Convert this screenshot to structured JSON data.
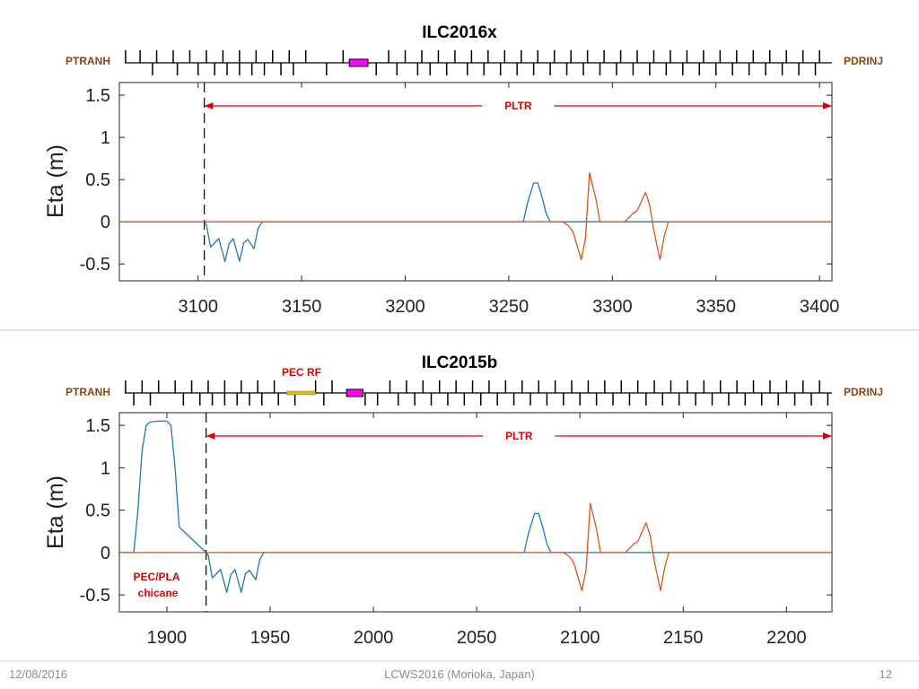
{
  "chart_data": [
    {
      "type": "line",
      "title": "ILC2016x",
      "ylabel": "Eta (m)",
      "xlim": [
        3062,
        3406
      ],
      "ylim": [
        -0.7,
        1.65
      ],
      "xticks": [
        3100,
        3150,
        3200,
        3250,
        3300,
        3350,
        3400
      ],
      "yticks": [
        -0.5,
        0,
        0.5,
        1,
        1.5
      ],
      "xtick_labels": [
        "3100",
        "3150",
        "3200",
        "3250",
        "3300",
        "3350",
        "3400"
      ],
      "ytick_labels": [
        "-0.5",
        "0",
        "0.5",
        "1",
        "1.5"
      ],
      "grid": false,
      "beamline_start_label": "PTRANH",
      "beamline_end_label": "PDRINJ",
      "marker_x": 3103,
      "arrow_label": "PLTR",
      "arrow_x": [
        3103,
        3406
      ],
      "beamline_layout": {
        "top_ticks": [
          3065,
          3072,
          3080,
          3088,
          3096,
          3104,
          3112,
          3120,
          3128,
          3136,
          3144,
          3152,
          3170,
          3192,
          3200,
          3208,
          3216,
          3224,
          3232,
          3240,
          3248,
          3256,
          3264,
          3272,
          3280,
          3288,
          3296,
          3304,
          3312,
          3320,
          3328,
          3336,
          3344,
          3352,
          3360,
          3368,
          3376,
          3384,
          3392,
          3400
        ],
        "bottom_ticks": [
          3078,
          3090,
          3100,
          3108,
          3114,
          3120,
          3126,
          3132,
          3140,
          3146,
          3162,
          3186,
          3196,
          3206,
          3212,
          3220,
          3230,
          3238,
          3246,
          3254,
          3262,
          3270,
          3278,
          3286,
          3294,
          3302,
          3310,
          3318,
          3326,
          3334,
          3342,
          3350,
          3358,
          3366,
          3374,
          3382,
          3390,
          3398
        ],
        "rf_box": [
          3173,
          3182
        ]
      },
      "series": [
        {
          "color": "#1f77b4",
          "x": [
            3062,
            3103,
            3104,
            3106,
            3110,
            3113,
            3115,
            3117,
            3120,
            3122,
            3124,
            3127,
            3129,
            3131,
            3257,
            3259,
            3262,
            3264,
            3266,
            3268,
            3270,
            3406
          ],
          "y": [
            0,
            0,
            -0.03,
            -0.3,
            -0.2,
            -0.47,
            -0.26,
            -0.2,
            -0.47,
            -0.25,
            -0.21,
            -0.32,
            -0.08,
            0,
            0,
            0.22,
            0.46,
            0.46,
            0.3,
            0.1,
            0,
            0
          ]
        },
        {
          "color": "#d95319",
          "x": [
            3062,
            3276,
            3279,
            3281,
            3285,
            3287,
            3289,
            3292,
            3294,
            3296,
            3300,
            3306,
            3310,
            3312,
            3316,
            3318,
            3320,
            3323,
            3325,
            3327,
            3406
          ],
          "y": [
            0,
            0,
            -0.05,
            -0.12,
            -0.45,
            -0.2,
            0.58,
            0.28,
            0,
            0,
            0,
            0,
            0.1,
            0.13,
            0.35,
            0.2,
            -0.1,
            -0.45,
            -0.18,
            0,
            0
          ]
        }
      ]
    },
    {
      "type": "line",
      "title": "ILC2015b",
      "ylabel": "Eta (m)",
      "xlim": [
        1877,
        2222
      ],
      "ylim": [
        -0.7,
        1.65
      ],
      "xticks": [
        1900,
        1950,
        2000,
        2050,
        2100,
        2150,
        2200
      ],
      "yticks": [
        -0.5,
        0,
        0.5,
        1,
        1.5
      ],
      "xtick_labels": [
        "1900",
        "1950",
        "2000",
        "2050",
        "2100",
        "2150",
        "2200"
      ],
      "ytick_labels": [
        "-0.5",
        "0",
        "0.5",
        "1",
        "1.5"
      ],
      "grid": false,
      "beamline_start_label": "PTRANH",
      "beamline_end_label": "PDRINJ",
      "marker_x": 1919,
      "arrow_label": "PLTR",
      "arrow_x": [
        1919,
        2222
      ],
      "annotations": [
        "PEC RF",
        "PEC/PLA chicane"
      ],
      "beamline_layout": {
        "top_ticks": [
          1880,
          1888,
          1896,
          1904,
          1912,
          1920,
          1928,
          1936,
          1944,
          1952,
          1972,
          1980,
          2008,
          2016,
          2024,
          2032,
          2040,
          2048,
          2056,
          2064,
          2072,
          2080,
          2088,
          2096,
          2104,
          2112,
          2120,
          2128,
          2136,
          2144,
          2152,
          2160,
          2168,
          2176,
          2184,
          2192,
          2200,
          2208,
          2216
        ],
        "bottom_ticks": [
          1884,
          1892,
          1908,
          1916,
          1922,
          1928,
          1934,
          1940,
          1946,
          1954,
          1962,
          1976,
          1996,
          2002,
          2012,
          2020,
          2028,
          2036,
          2044,
          2052,
          2060,
          2068,
          2076,
          2084,
          2092,
          2100,
          2108,
          2116,
          2124,
          2132,
          2140,
          2148,
          2156,
          2164,
          2172,
          2180,
          2188,
          2196,
          2204,
          2212,
          2220
        ],
        "rf_box": [
          1987,
          1995
        ],
        "pec_rf_band": [
          1958,
          1972
        ]
      },
      "series": [
        {
          "color": "#1f77b4",
          "x": [
            1877,
            1884,
            1886,
            1888,
            1890,
            1892,
            1896,
            1900,
            1902,
            1904,
            1906,
            1919,
            1920,
            1922,
            1926,
            1929,
            1931,
            1933,
            1936,
            1938,
            1940,
            1943,
            1945,
            1947,
            2073,
            2075,
            2078,
            2080,
            2082,
            2084,
            2086,
            2222
          ],
          "y": [
            0,
            0,
            0.5,
            1.2,
            1.5,
            1.54,
            1.55,
            1.55,
            1.5,
            1.0,
            0.3,
            0,
            -0.03,
            -0.3,
            -0.2,
            -0.47,
            -0.26,
            -0.2,
            -0.47,
            -0.25,
            -0.21,
            -0.32,
            -0.08,
            0,
            0,
            0.22,
            0.46,
            0.46,
            0.3,
            0.1,
            0,
            0
          ]
        },
        {
          "color": "#d95319",
          "x": [
            1877,
            2092,
            2095,
            2097,
            2101,
            2103,
            2105,
            2108,
            2110,
            2112,
            2116,
            2122,
            2126,
            2128,
            2132,
            2134,
            2136,
            2139,
            2141,
            2143,
            2222
          ],
          "y": [
            0,
            0,
            -0.05,
            -0.12,
            -0.45,
            -0.2,
            0.58,
            0.28,
            0,
            0,
            0,
            0,
            0.1,
            0.13,
            0.35,
            0.2,
            -0.1,
            -0.45,
            -0.18,
            0,
            0
          ]
        }
      ]
    }
  ],
  "footer": {
    "date": "12/08/2016",
    "event": "LCWS2016 (Morioka, Japan)",
    "page": "12"
  },
  "colors": {
    "eta_x": "#1f77b4",
    "eta_alt": "#d95319",
    "arrow": "#e00000",
    "rf_box": "#ff00ff",
    "beamline_label": "#8b4513"
  }
}
